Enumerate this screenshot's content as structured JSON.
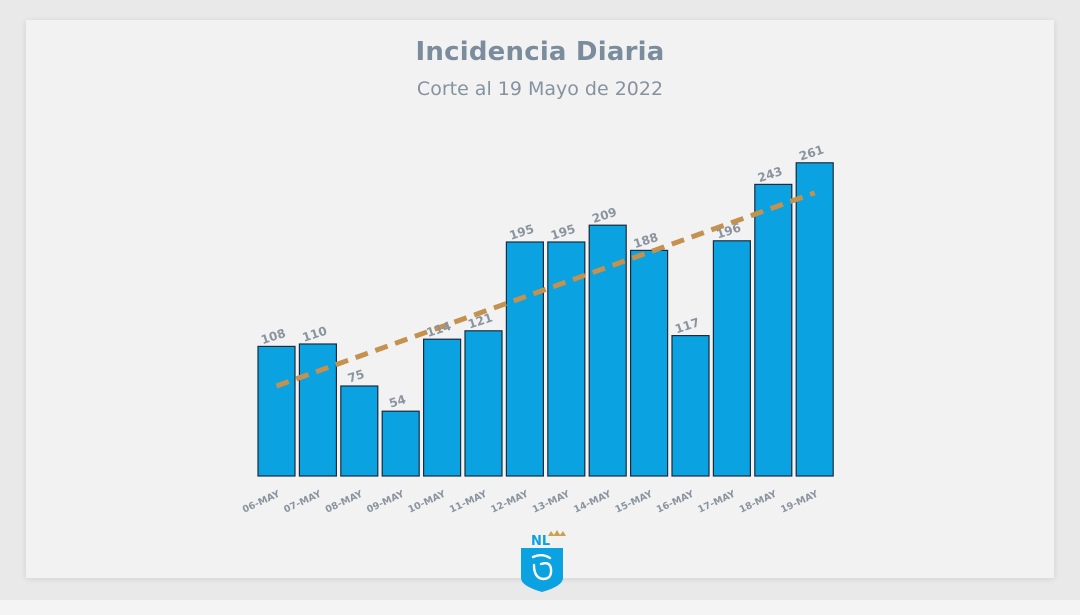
{
  "title": "Incidencia Diaria",
  "subtitle": "Corte al 19 Mayo de 2022",
  "logo_text": "NL",
  "colors": {
    "bar": "#0aa2e0",
    "bar_outline": "#1b2b3a",
    "trend": "#c4914e",
    "label": "#8a949e",
    "title": "#7b8d9c"
  },
  "chart_data": {
    "type": "bar",
    "title": "Incidencia Diaria",
    "subtitle": "Corte al 19 Mayo de 2022",
    "xlabel": "",
    "ylabel": "",
    "ylim": [
      0,
      270
    ],
    "grid": false,
    "categories": [
      "06-MAY",
      "07-MAY",
      "08-MAY",
      "09-MAY",
      "10-MAY",
      "11-MAY",
      "12-MAY",
      "13-MAY",
      "14-MAY",
      "15-MAY",
      "16-MAY",
      "17-MAY",
      "18-MAY",
      "19-MAY"
    ],
    "values": [
      108,
      110,
      75,
      54,
      114,
      121,
      195,
      195,
      209,
      188,
      117,
      196,
      243,
      261
    ],
    "trendline": {
      "style": "dashed",
      "start": 75,
      "end": 236
    }
  }
}
